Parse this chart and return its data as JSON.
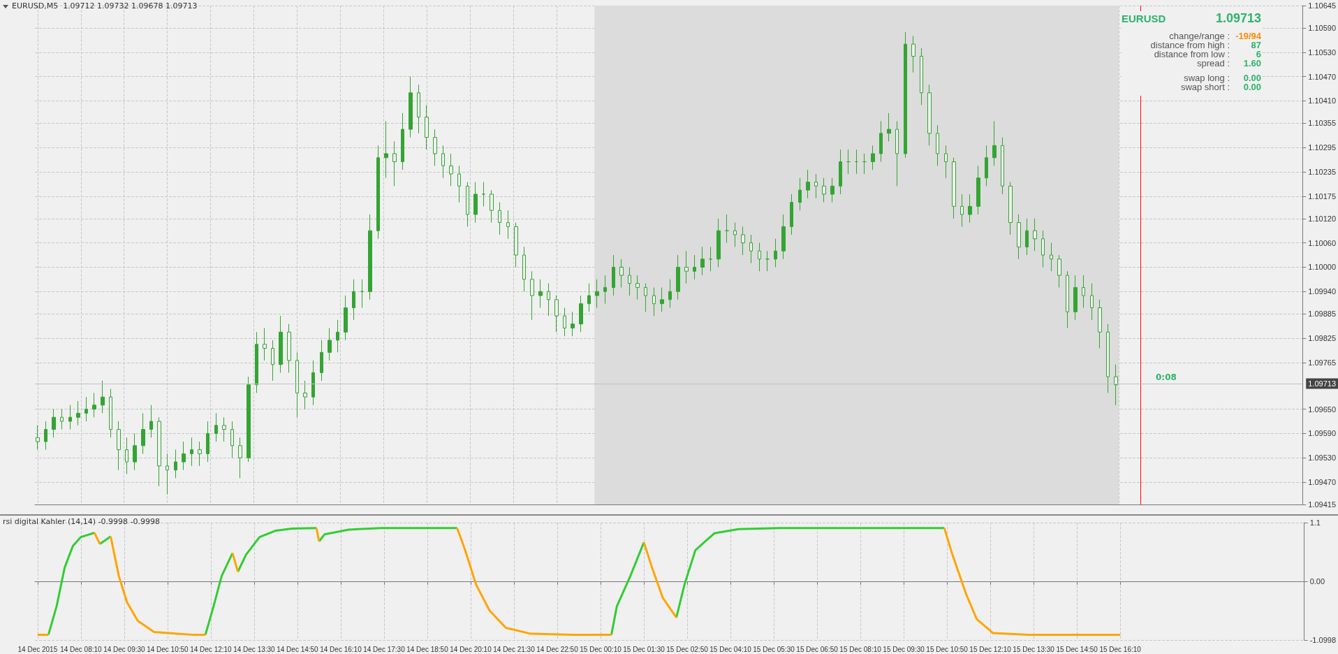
{
  "chart_data": [
    {
      "type": "candlestick",
      "title": "EURUSD,M5  1.09712 1.09732 1.09678 1.09713",
      "color": "#33a532",
      "grid": true,
      "tick_labels": "y",
      "xlim": [
        "2015-12-14T06:45",
        "2015-12-15T21:50"
      ],
      "ylim": [
        1.09415,
        1.10645
      ],
      "yticks": [
        {
          "value": 1.10645,
          "label": "1.10645"
        },
        {
          "value": 1.1059,
          "label": "1.10590"
        },
        {
          "value": 1.1053,
          "label": "1.10530"
        },
        {
          "value": 1.1047,
          "label": "1.10470"
        },
        {
          "value": 1.1041,
          "label": "1.10410"
        },
        {
          "value": 1.10355,
          "label": "1.10355"
        },
        {
          "value": 1.10295,
          "label": "1.10295"
        },
        {
          "value": 1.10235,
          "label": "1.10235"
        },
        {
          "value": 1.10175,
          "label": "1.10175"
        },
        {
          "value": 1.1012,
          "label": "1.10120"
        },
        {
          "value": 1.1006,
          "label": "1.10060"
        },
        {
          "value": 1.1,
          "label": "1.10000"
        },
        {
          "value": 1.0994,
          "label": "1.09940"
        },
        {
          "value": 1.09885,
          "label": "1.09885"
        },
        {
          "value": 1.09825,
          "label": "1.09825"
        },
        {
          "value": 1.09765,
          "label": "1.09765"
        },
        {
          "value": 1.0965,
          "label": "1.09650"
        },
        {
          "value": 1.0959,
          "label": "1.09590"
        },
        {
          "value": 1.0953,
          "label": "1.09530"
        },
        {
          "value": 1.0947,
          "label": "1.09470"
        },
        {
          "value": 1.09415,
          "label": "1.09415"
        }
      ],
      "xticks": [
        "2015-12-14T06:50",
        "2015-12-14T08:10",
        "2015-12-14T09:30",
        "2015-12-14T10:50",
        "2015-12-14T12:10",
        "2015-12-14T13:30",
        "2015-12-14T14:50",
        "2015-12-14T16:10",
        "2015-12-14T17:30",
        "2015-12-14T18:50",
        "2015-12-14T20:10",
        "2015-12-14T21:30",
        "2015-12-14T22:50",
        "2015-12-15T00:10",
        "2015-12-15T01:30",
        "2015-12-15T02:50",
        "2015-12-15T04:10",
        "2015-12-15T05:30",
        "2015-12-15T06:50",
        "2015-12-15T08:10",
        "2015-12-15T09:30",
        "2015-12-15T10:50",
        "2015-12-15T12:10",
        "2015-12-15T13:30",
        "2015-12-15T14:50",
        "2015-12-15T16:10"
      ],
      "bands": [
        {
          "axis": "x",
          "from": "2015-12-15T00:00",
          "to": "2015-12-15T16:10",
          "color": "#dcdcdc"
        }
      ],
      "ref_lines": [
        {
          "axis": "x",
          "value": "2015-12-15T16:50",
          "color": "#ff0000"
        },
        {
          "axis": "y",
          "value": 1.09713,
          "label": "1.09713",
          "color": "#c0c0c0"
        }
      ],
      "annotations": [
        "EURUSD",
        "1.09713",
        "change/range :",
        "-19/94",
        "distance from high :",
        "87",
        "distance from low :",
        "6",
        "spread :",
        "1.60",
        "swap long :",
        "0.00",
        "swap short :",
        "0.00",
        "0:08"
      ],
      "x": [
        "2015-12-14T06:50",
        "2015-12-14T07:05",
        "2015-12-14T07:20",
        "2015-12-14T07:35",
        "2015-12-14T07:50",
        "2015-12-14T08:05",
        "2015-12-14T08:20",
        "2015-12-14T08:35",
        "2015-12-14T08:50",
        "2015-12-14T09:05",
        "2015-12-14T09:20",
        "2015-12-14T09:35",
        "2015-12-14T09:50",
        "2015-12-14T10:05",
        "2015-12-14T10:20",
        "2015-12-14T10:35",
        "2015-12-14T10:50",
        "2015-12-14T11:05",
        "2015-12-14T11:20",
        "2015-12-14T11:35",
        "2015-12-14T11:50",
        "2015-12-14T12:05",
        "2015-12-14T12:20",
        "2015-12-14T12:35",
        "2015-12-14T12:50",
        "2015-12-14T13:05",
        "2015-12-14T13:20",
        "2015-12-14T13:35",
        "2015-12-14T13:50",
        "2015-12-14T14:05",
        "2015-12-14T14:20",
        "2015-12-14T14:35",
        "2015-12-14T14:50",
        "2015-12-14T15:05",
        "2015-12-14T15:20",
        "2015-12-14T15:35",
        "2015-12-14T15:50",
        "2015-12-14T16:05",
        "2015-12-14T16:20",
        "2015-12-14T16:35",
        "2015-12-14T16:50",
        "2015-12-14T17:05",
        "2015-12-14T17:20",
        "2015-12-14T17:35",
        "2015-12-14T17:50",
        "2015-12-14T18:05",
        "2015-12-14T18:20",
        "2015-12-14T18:35",
        "2015-12-14T18:50",
        "2015-12-14T19:05",
        "2015-12-14T19:20",
        "2015-12-14T19:35",
        "2015-12-14T19:50",
        "2015-12-14T20:05",
        "2015-12-14T20:20",
        "2015-12-14T20:35",
        "2015-12-14T20:50",
        "2015-12-14T21:05",
        "2015-12-14T21:20",
        "2015-12-14T21:35",
        "2015-12-14T21:50",
        "2015-12-14T22:05",
        "2015-12-14T22:20",
        "2015-12-14T22:35",
        "2015-12-14T22:50",
        "2015-12-14T23:05",
        "2015-12-14T23:20",
        "2015-12-14T23:35",
        "2015-12-14T23:50",
        "2015-12-15T00:05",
        "2015-12-15T00:20",
        "2015-12-15T00:35",
        "2015-12-15T00:50",
        "2015-12-15T01:05",
        "2015-12-15T01:20",
        "2015-12-15T01:35",
        "2015-12-15T01:50",
        "2015-12-15T02:05",
        "2015-12-15T02:20",
        "2015-12-15T02:35",
        "2015-12-15T02:50",
        "2015-12-15T03:05",
        "2015-12-15T03:20",
        "2015-12-15T03:35",
        "2015-12-15T03:50",
        "2015-12-15T04:05",
        "2015-12-15T04:20",
        "2015-12-15T04:35",
        "2015-12-15T04:50",
        "2015-12-15T05:05",
        "2015-12-15T05:20",
        "2015-12-15T05:35",
        "2015-12-15T05:50",
        "2015-12-15T06:05",
        "2015-12-15T06:20",
        "2015-12-15T06:35",
        "2015-12-15T06:50",
        "2015-12-15T07:05",
        "2015-12-15T07:20",
        "2015-12-15T07:35",
        "2015-12-15T07:50",
        "2015-12-15T08:05",
        "2015-12-15T08:20",
        "2015-12-15T08:35",
        "2015-12-15T08:50",
        "2015-12-15T09:05",
        "2015-12-15T09:20",
        "2015-12-15T09:35",
        "2015-12-15T09:50",
        "2015-12-15T10:05",
        "2015-12-15T10:20",
        "2015-12-15T10:35",
        "2015-12-15T10:50",
        "2015-12-15T11:05",
        "2015-12-15T11:20",
        "2015-12-15T11:35",
        "2015-12-15T11:50",
        "2015-12-15T12:05",
        "2015-12-15T12:20",
        "2015-12-15T12:35",
        "2015-12-15T12:50",
        "2015-12-15T13:05",
        "2015-12-15T13:20",
        "2015-12-15T13:35",
        "2015-12-15T13:50",
        "2015-12-15T14:05",
        "2015-12-15T14:20",
        "2015-12-15T14:35",
        "2015-12-15T14:50",
        "2015-12-15T15:05",
        "2015-12-15T15:20",
        "2015-12-15T15:35",
        "2015-12-15T15:50",
        "2015-12-15T16:05"
      ],
      "ohlc": [
        [
          1.0958,
          1.0961,
          1.0955,
          1.0957
        ],
        [
          1.0957,
          1.0962,
          1.0955,
          1.096
        ],
        [
          1.096,
          1.0965,
          1.0958,
          1.0963
        ],
        [
          1.0963,
          1.0965,
          1.096,
          1.0962
        ],
        [
          1.0962,
          1.0966,
          1.096,
          1.0963
        ],
        [
          1.0963,
          1.0967,
          1.0961,
          1.0964
        ],
        [
          1.0964,
          1.0968,
          1.0962,
          1.0965
        ],
        [
          1.0965,
          1.0969,
          1.0963,
          1.0966
        ],
        [
          1.0966,
          1.0972,
          1.0964,
          1.0968
        ],
        [
          1.0968,
          1.097,
          1.0958,
          1.096
        ],
        [
          1.096,
          1.0962,
          1.095,
          1.0955
        ],
        [
          1.0955,
          1.0958,
          1.0949,
          1.0952
        ],
        [
          1.0952,
          1.0959,
          1.095,
          1.0956
        ],
        [
          1.0956,
          1.0964,
          1.0954,
          1.096
        ],
        [
          1.096,
          1.0966,
          1.0958,
          1.0962
        ],
        [
          1.0962,
          1.0963,
          1.0946,
          1.0951
        ],
        [
          1.0951,
          1.0954,
          1.0944,
          1.095
        ],
        [
          1.095,
          1.0955,
          1.0948,
          1.0952
        ],
        [
          1.0952,
          1.0957,
          1.095,
          1.0954
        ],
        [
          1.0954,
          1.0958,
          1.0951,
          1.0955
        ],
        [
          1.0955,
          1.0957,
          1.0951,
          1.0954
        ],
        [
          1.0954,
          1.0962,
          1.0952,
          1.0959
        ],
        [
          1.0959,
          1.0964,
          1.0957,
          1.0961
        ],
        [
          1.0961,
          1.0963,
          1.0957,
          1.096
        ],
        [
          1.096,
          1.0962,
          1.0953,
          1.0956
        ],
        [
          1.0956,
          1.0958,
          1.0948,
          1.0953
        ],
        [
          1.0953,
          1.0973,
          1.0952,
          1.0971
        ],
        [
          1.0971,
          1.0984,
          1.0969,
          1.0981
        ],
        [
          1.0981,
          1.0985,
          1.0977,
          1.098
        ],
        [
          1.098,
          1.0982,
          1.0972,
          1.0976
        ],
        [
          1.0976,
          1.0988,
          1.0974,
          1.0984
        ],
        [
          1.0984,
          1.0986,
          1.0974,
          1.0977
        ],
        [
          1.0977,
          1.0979,
          1.0963,
          1.0969
        ],
        [
          1.0969,
          1.0972,
          1.0965,
          1.0968
        ],
        [
          1.0968,
          1.0977,
          1.0966,
          1.0974
        ],
        [
          1.0974,
          1.0982,
          1.0972,
          1.0979
        ],
        [
          1.0979,
          1.0985,
          1.0977,
          1.0982
        ],
        [
          1.0982,
          1.0987,
          1.0979,
          1.0984
        ],
        [
          1.0984,
          1.0993,
          1.0982,
          1.099
        ],
        [
          1.099,
          1.0997,
          1.0987,
          1.0994
        ],
        [
          1.0994,
          1.0997,
          1.099,
          1.0994
        ],
        [
          1.0994,
          1.1013,
          1.0992,
          1.1009
        ],
        [
          1.1009,
          1.103,
          1.1007,
          1.1027
        ],
        [
          1.1027,
          1.1036,
          1.1022,
          1.1028
        ],
        [
          1.1028,
          1.1031,
          1.102,
          1.1026
        ],
        [
          1.1026,
          1.1038,
          1.1024,
          1.1034
        ],
        [
          1.1034,
          1.1047,
          1.1032,
          1.1043
        ],
        [
          1.1043,
          1.1045,
          1.1033,
          1.1037
        ],
        [
          1.1037,
          1.104,
          1.1029,
          1.1032
        ],
        [
          1.1032,
          1.1034,
          1.1025,
          1.1028
        ],
        [
          1.1028,
          1.103,
          1.1022,
          1.1025
        ],
        [
          1.1025,
          1.1028,
          1.102,
          1.1023
        ],
        [
          1.1023,
          1.1025,
          1.1016,
          1.102
        ],
        [
          1.102,
          1.1021,
          1.101,
          1.1013
        ],
        [
          1.1013,
          1.1021,
          1.1011,
          1.1018
        ],
        [
          1.1018,
          1.1021,
          1.1015,
          1.1018
        ],
        [
          1.1018,
          1.1019,
          1.1011,
          1.1014
        ],
        [
          1.1014,
          1.1016,
          1.1008,
          1.1011
        ],
        [
          1.1011,
          1.1014,
          1.1007,
          1.101
        ],
        [
          1.101,
          1.1011,
          1.1,
          1.1003
        ],
        [
          1.1003,
          1.1005,
          1.0994,
          1.0997
        ],
        [
          1.0997,
          1.0999,
          1.0987,
          1.0993
        ],
        [
          1.0993,
          1.0997,
          1.099,
          1.0994
        ],
        [
          1.0994,
          1.0996,
          1.0988,
          1.0992
        ],
        [
          1.0992,
          1.0993,
          1.0984,
          1.0988
        ],
        [
          1.0988,
          1.099,
          1.0983,
          1.0985
        ],
        [
          1.0985,
          1.0989,
          1.0983,
          1.0986
        ],
        [
          1.0986,
          1.0993,
          1.0984,
          1.0991
        ],
        [
          1.0991,
          1.0996,
          1.0989,
          1.0993
        ],
        [
          1.0993,
          1.0997,
          1.099,
          1.0994
        ],
        [
          1.0994,
          1.0998,
          1.0991,
          1.0995
        ],
        [
          1.0995,
          1.1003,
          1.0993,
          1.1
        ],
        [
          1.1,
          1.1002,
          1.0995,
          1.0998
        ],
        [
          1.0998,
          1.1,
          1.0993,
          1.0996
        ],
        [
          1.0996,
          1.0998,
          1.0992,
          1.0995
        ],
        [
          1.0995,
          1.0996,
          1.0989,
          1.0993
        ],
        [
          1.0993,
          1.0995,
          1.0988,
          1.0991
        ],
        [
          1.0991,
          1.0995,
          1.0989,
          1.0992
        ],
        [
          1.0992,
          1.0997,
          1.099,
          1.0994
        ],
        [
          1.0994,
          1.1003,
          1.0992,
          1.1
        ],
        [
          1.1,
          1.1004,
          1.0996,
          1.0999
        ],
        [
          1.0999,
          1.1003,
          1.0997,
          1.1
        ],
        [
          1.1,
          1.1005,
          1.0998,
          1.1002
        ],
        [
          1.1002,
          1.1005,
          1.0999,
          1.1002
        ],
        [
          1.1002,
          1.1012,
          1.1,
          1.1009
        ],
        [
          1.1009,
          1.1013,
          1.1006,
          1.1009
        ],
        [
          1.1009,
          1.1011,
          1.1005,
          1.1008
        ],
        [
          1.1008,
          1.101,
          1.1003,
          1.1006
        ],
        [
          1.1006,
          1.1008,
          1.1001,
          1.1004
        ],
        [
          1.1004,
          1.1006,
          1.0999,
          1.1002
        ],
        [
          1.1002,
          1.1004,
          1.0999,
          1.1002
        ],
        [
          1.1002,
          1.1007,
          1.1,
          1.1004
        ],
        [
          1.1004,
          1.1013,
          1.1002,
          1.101
        ],
        [
          1.101,
          1.1018,
          1.1008,
          1.1016
        ],
        [
          1.1016,
          1.1022,
          1.1014,
          1.1019
        ],
        [
          1.1019,
          1.1024,
          1.1017,
          1.1021
        ],
        [
          1.1021,
          1.1023,
          1.1017,
          1.102
        ],
        [
          1.102,
          1.1022,
          1.1016,
          1.1018
        ],
        [
          1.1018,
          1.1022,
          1.1016,
          1.102
        ],
        [
          1.102,
          1.1029,
          1.1018,
          1.1026
        ],
        [
          1.1026,
          1.1029,
          1.1023,
          1.1026
        ],
        [
          1.1026,
          1.1029,
          1.1023,
          1.1026
        ],
        [
          1.1026,
          1.1028,
          1.1023,
          1.1026
        ],
        [
          1.1026,
          1.103,
          1.1024,
          1.1028
        ],
        [
          1.1028,
          1.1036,
          1.1026,
          1.1033
        ],
        [
          1.1033,
          1.1038,
          1.1031,
          1.1034
        ],
        [
          1.1034,
          1.1036,
          1.102,
          1.1028
        ],
        [
          1.1028,
          1.1058,
          1.1027,
          1.1055
        ],
        [
          1.1055,
          1.1057,
          1.1048,
          1.1052
        ],
        [
          1.1052,
          1.1054,
          1.104,
          1.1043
        ],
        [
          1.1043,
          1.1045,
          1.103,
          1.1033
        ],
        [
          1.1033,
          1.1035,
          1.1025,
          1.1028
        ],
        [
          1.1028,
          1.103,
          1.1022,
          1.1026
        ],
        [
          1.1026,
          1.1027,
          1.1012,
          1.1015
        ],
        [
          1.1015,
          1.1018,
          1.101,
          1.1013
        ],
        [
          1.1013,
          1.1018,
          1.1011,
          1.1015
        ],
        [
          1.1015,
          1.1025,
          1.1013,
          1.1022
        ],
        [
          1.1022,
          1.103,
          1.102,
          1.1027
        ],
        [
          1.1027,
          1.1036,
          1.1025,
          1.103
        ],
        [
          1.103,
          1.1032,
          1.1018,
          1.102
        ],
        [
          1.102,
          1.1021,
          1.1008,
          1.1011
        ],
        [
          1.1011,
          1.1013,
          1.1002,
          1.1005
        ],
        [
          1.1005,
          1.1012,
          1.1003,
          1.1009
        ],
        [
          1.1009,
          1.1012,
          1.1004,
          1.1007
        ],
        [
          1.1007,
          1.1009,
          1.1,
          1.1003
        ],
        [
          1.1003,
          1.1006,
          1.0999,
          1.1002
        ],
        [
          1.1002,
          1.1003,
          1.0995,
          1.0998
        ],
        [
          1.0998,
          1.0999,
          1.0985,
          1.0989
        ],
        [
          1.0989,
          1.0998,
          1.0987,
          1.0995
        ],
        [
          1.0995,
          1.0998,
          1.099,
          1.0993
        ],
        [
          1.0993,
          1.0996,
          1.0987,
          1.099
        ],
        [
          1.099,
          1.0992,
          1.098,
          1.0984
        ],
        [
          1.0984,
          1.0986,
          1.0969,
          1.0973
        ],
        [
          1.0973,
          1.0976,
          1.0966,
          1.0971
        ]
      ]
    },
    {
      "type": "line",
      "title": "rsi digital Kahler (14,14) -0.9998 -0.9998",
      "grid": true,
      "marker": "none",
      "xlim": [
        "2015-12-14T06:45",
        "2015-12-15T21:50"
      ],
      "ylim": [
        -1.0998,
        1.1
      ],
      "yticks": [
        1.1,
        {
          "value": 0,
          "label": "0.00"
        },
        -1.0998
      ],
      "xticks": [
        {
          "value": "2015-12-14T06:50",
          "label": "14 Dec 2015"
        },
        {
          "value": "2015-12-14T08:10",
          "label": "14 Dec 08:10"
        },
        {
          "value": "2015-12-14T09:30",
          "label": "14 Dec 09:30"
        },
        {
          "value": "2015-12-14T10:50",
          "label": "14 Dec 10:50"
        },
        {
          "value": "2015-12-14T12:10",
          "label": "14 Dec 12:10"
        },
        {
          "value": "2015-12-14T13:30",
          "label": "14 Dec 13:30"
        },
        {
          "value": "2015-12-14T14:50",
          "label": "14 Dec 14:50"
        },
        {
          "value": "2015-12-14T16:10",
          "label": "14 Dec 16:10"
        },
        {
          "value": "2015-12-14T17:30",
          "label": "14 Dec 17:30"
        },
        {
          "value": "2015-12-14T18:50",
          "label": "14 Dec 18:50"
        },
        {
          "value": "2015-12-14T20:10",
          "label": "14 Dec 20:10"
        },
        {
          "value": "2015-12-14T21:30",
          "label": "14 Dec 21:30"
        },
        {
          "value": "2015-12-14T22:50",
          "label": "14 Dec 22:50"
        },
        {
          "value": "2015-12-15T00:10",
          "label": "15 Dec 00:10"
        },
        {
          "value": "2015-12-15T01:30",
          "label": "15 Dec 01:30"
        },
        {
          "value": "2015-12-15T02:50",
          "label": "15 Dec 02:50"
        },
        {
          "value": "2015-12-15T04:10",
          "label": "15 Dec 04:10"
        },
        {
          "value": "2015-12-15T05:30",
          "label": "15 Dec 05:30"
        },
        {
          "value": "2015-12-15T06:50",
          "label": "15 Dec 06:50"
        },
        {
          "value": "2015-12-15T08:10",
          "label": "15 Dec 08:10"
        },
        {
          "value": "2015-12-15T09:30",
          "label": "15 Dec 09:30"
        },
        {
          "value": "2015-12-15T10:50",
          "label": "15 Dec 10:50"
        },
        {
          "value": "2015-12-15T12:10",
          "label": "15 Dec 12:10"
        },
        {
          "value": "2015-12-15T13:30",
          "label": "15 Dec 13:30"
        },
        {
          "value": "2015-12-15T14:50",
          "label": "15 Dec 14:50"
        },
        {
          "value": "2015-12-15T16:10",
          "label": "15 Dec 16:10"
        }
      ],
      "series": [
        {
          "color": "#32cd32",
          "x": [
            "2015-12-14T07:10",
            "2015-12-14T07:25",
            "2015-12-14T07:40",
            "2015-12-14T07:55",
            "2015-12-14T08:10",
            "2015-12-14T08:35",
            "2015-12-14T08:40",
            "2015-12-14T08:45",
            "2015-12-14T09:05",
            "2015-12-14T09:10",
            "2015-12-14T12:00",
            "2015-12-14T12:15",
            "2015-12-14T12:30",
            "2015-12-14T12:50",
            "2015-12-14T12:55",
            "2015-12-14T13:00",
            "2015-12-14T13:15",
            "2015-12-14T13:40",
            "2015-12-14T14:10",
            "2015-12-14T14:40",
            "2015-12-14T15:25",
            "2015-12-14T15:27",
            "2015-12-14T15:30",
            "2015-12-14T15:40",
            "2015-12-14T16:25",
            "2015-12-14T17:25",
            "2015-12-14T19:45",
            "2015-12-14T19:50",
            "2015-12-15T00:30",
            "2015-12-15T00:40",
            "2015-12-15T01:05",
            "2015-12-15T01:30",
            "2015-12-15T01:35",
            "2015-12-15T02:30",
            "2015-12-15T02:45",
            "2015-12-15T03:05",
            "2015-12-15T03:40",
            "2015-12-15T04:25",
            "2015-12-15T05:40",
            "2015-12-15T10:45"
          ],
          "values": [
            -1.0,
            -0.47,
            0.26,
            0.66,
            0.83,
            0.91,
            null,
            0.7,
            0.84,
            null,
            -1.0,
            -0.47,
            0.1,
            0.53,
            null,
            0.18,
            0.5,
            0.83,
            0.95,
            0.99,
            1.0,
            null,
            0.75,
            0.88,
            0.97,
            1.0,
            1.0,
            null,
            -1.0,
            -0.47,
            0.1,
            0.73,
            null,
            -0.68,
            -0.06,
            0.58,
            0.9,
            0.98,
            1.0,
            1.0
          ]
        },
        {
          "color": "#ffa500",
          "x": [
            "2015-12-14T06:50",
            "2015-12-14T07:10",
            "2015-12-14T07:15",
            "2015-12-14T08:35",
            "2015-12-14T08:45",
            "2015-12-14T08:50",
            "2015-12-14T09:05",
            "2015-12-14T09:20",
            "2015-12-14T09:35",
            "2015-12-14T09:55",
            "2015-12-14T10:25",
            "2015-12-14T11:05",
            "2015-12-14T11:35",
            "2015-12-14T12:00",
            "2015-12-14T12:10",
            "2015-12-14T12:50",
            "2015-12-14T13:00",
            "2015-12-14T13:10",
            "2015-12-14T15:25",
            "2015-12-14T15:30",
            "2015-12-14T15:35",
            "2015-12-14T19:45",
            "2015-12-14T20:00",
            "2015-12-14T20:20",
            "2015-12-14T20:45",
            "2015-12-14T21:15",
            "2015-12-14T22:00",
            "2015-12-14T23:20",
            "2015-12-15T00:30",
            "2015-12-15T00:35",
            "2015-12-15T01:30",
            "2015-12-15T01:45",
            "2015-12-15T02:05",
            "2015-12-15T02:30",
            "2015-12-15T02:35",
            "2015-12-15T10:45",
            "2015-12-15T11:00",
            "2015-12-15T11:25",
            "2015-12-15T11:45",
            "2015-12-15T12:15",
            "2015-12-15T13:20",
            "2015-12-15T16:10"
          ],
          "values": [
            -1.0,
            -1.0,
            null,
            0.91,
            0.7,
            null,
            0.84,
            0.1,
            -0.39,
            -0.74,
            -0.95,
            -0.98,
            -1.0,
            -1.0,
            null,
            0.53,
            0.18,
            null,
            1.0,
            0.75,
            null,
            1.0,
            0.58,
            -0.06,
            -0.55,
            -0.87,
            -0.98,
            -1.0,
            -1.0,
            null,
            0.73,
            0.26,
            -0.31,
            -0.68,
            null,
            1.0,
            0.5,
            -0.23,
            -0.71,
            -0.97,
            -1.0,
            -1.0
          ]
        }
      ]
    }
  ]
}
